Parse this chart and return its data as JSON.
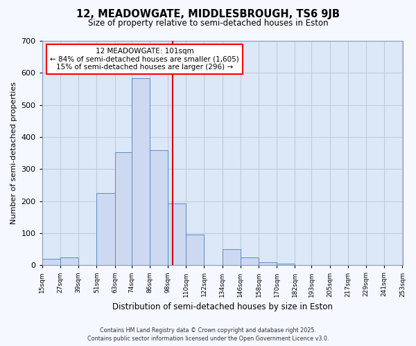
{
  "title": "12, MEADOWGATE, MIDDLESBROUGH, TS6 9JB",
  "subtitle": "Size of property relative to semi-detached houses in Eston",
  "xlabel": "Distribution of semi-detached houses by size in Eston",
  "ylabel": "Number of semi-detached properties",
  "bin_edges": [
    15,
    27,
    39,
    51,
    63,
    74,
    86,
    98,
    110,
    122,
    134,
    146,
    158,
    170,
    182,
    193,
    205,
    217,
    229,
    241,
    253
  ],
  "bin_counts": [
    20,
    25,
    0,
    225,
    353,
    583,
    358,
    192,
    96,
    0,
    50,
    25,
    10,
    5,
    0,
    0,
    0,
    0,
    0,
    0
  ],
  "bar_facecolor": "#ccd9f0",
  "bar_edgecolor": "#5b8bc8",
  "property_size": 101,
  "vline_color": "#cc0000",
  "annotation_line1": "12 MEADOWGATE: 101sqm",
  "annotation_line2": "← 84% of semi-detached houses are smaller (1,605)",
  "annotation_line3": "15% of semi-detached houses are larger (296) →",
  "ylim": [
    0,
    700
  ],
  "yticks": [
    0,
    100,
    200,
    300,
    400,
    500,
    600,
    700
  ],
  "grid_color": "#beccdf",
  "plot_bg_color": "#dce8f8",
  "fig_bg_color": "#f5f8ff",
  "footer_line1": "Contains HM Land Registry data © Crown copyright and database right 2025.",
  "footer_line2": "Contains public sector information licensed under the Open Government Licence v3.0.",
  "tick_labels": [
    "15sqm",
    "27sqm",
    "39sqm",
    "51sqm",
    "63sqm",
    "74sqm",
    "86sqm",
    "98sqm",
    "110sqm",
    "122sqm",
    "134sqm",
    "146sqm",
    "158sqm",
    "170sqm",
    "182sqm",
    "193sqm",
    "205sqm",
    "217sqm",
    "229sqm",
    "241sqm",
    "253sqm"
  ]
}
